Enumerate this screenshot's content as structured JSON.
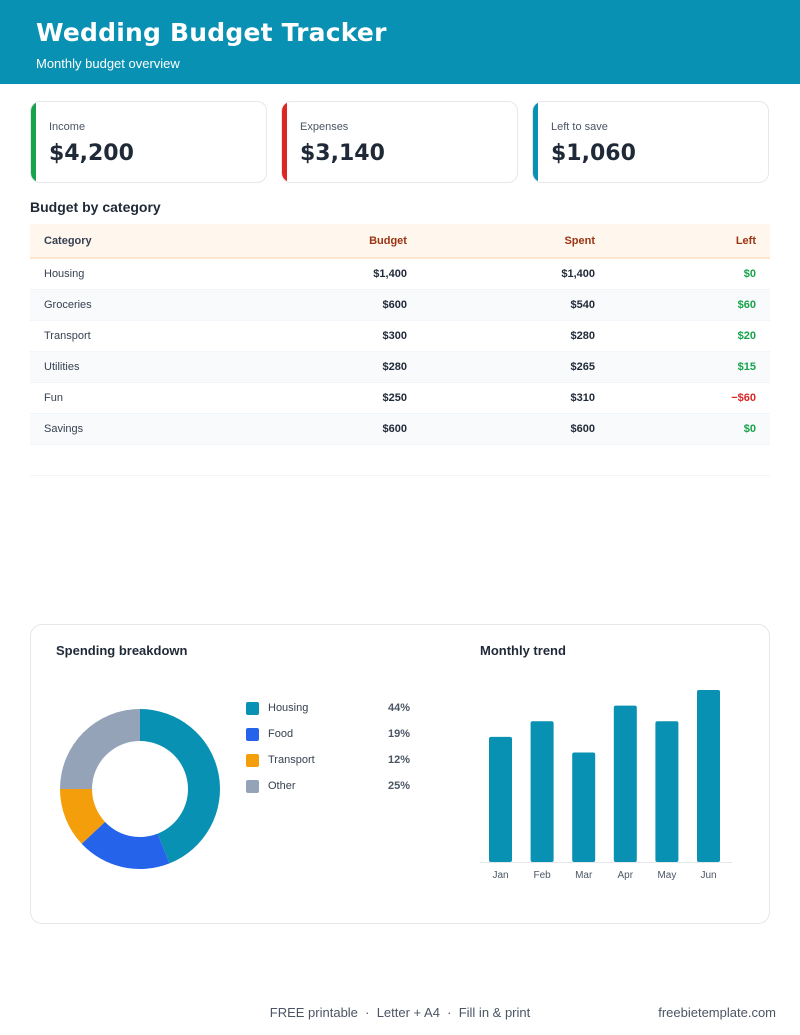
{
  "header": {
    "title": "Wedding Budget Tracker",
    "subtitle": "Monthly budget overview"
  },
  "summary": [
    {
      "label": "Income",
      "value": "$4,200",
      "color": "#16a34a"
    },
    {
      "label": "Expenses",
      "value": "$3,140",
      "color": "#dc2626"
    },
    {
      "label": "Left to save",
      "value": "$1,060",
      "color": "#0891b2"
    }
  ],
  "budget_table": {
    "title": "Budget by category",
    "headers": [
      "Category",
      "Budget",
      "Spent",
      "Left"
    ],
    "rows": [
      {
        "category": "Housing",
        "budget": "$1,400",
        "spent": "$1,400",
        "left": "$0"
      },
      {
        "category": "Groceries",
        "budget": "$600",
        "spent": "$540",
        "left": "$60"
      },
      {
        "category": "Transport",
        "budget": "$300",
        "spent": "$280",
        "left": "$20"
      },
      {
        "category": "Utilities",
        "budget": "$280",
        "spent": "$265",
        "left": "$15"
      },
      {
        "category": "Fun",
        "budget": "$250",
        "spent": "$310",
        "left": "−$60"
      },
      {
        "category": "Savings",
        "budget": "$600",
        "spent": "$600",
        "left": "$0"
      }
    ]
  },
  "spending": {
    "title": "Spending breakdown",
    "items": [
      {
        "label": "Housing",
        "pct": "44%",
        "color": "#0891b2"
      },
      {
        "label": "Food",
        "pct": "19%",
        "color": "#2563eb"
      },
      {
        "label": "Transport",
        "pct": "12%",
        "color": "#f59e0b"
      },
      {
        "label": "Other",
        "pct": "25%",
        "color": "#94a3b8"
      }
    ]
  },
  "trend": {
    "title": "Monthly trend"
  },
  "chart_data": [
    {
      "type": "pie",
      "title": "Spending breakdown",
      "categories": [
        "Housing",
        "Food",
        "Transport",
        "Other"
      ],
      "values": [
        44,
        19,
        12,
        25
      ],
      "colors": [
        "#0891b2",
        "#2563eb",
        "#f59e0b",
        "#94a3b8"
      ],
      "legend": "right"
    },
    {
      "type": "bar",
      "title": "Monthly trend",
      "categories": [
        "Jan",
        "Feb",
        "Mar",
        "Apr",
        "May",
        "Jun"
      ],
      "values": [
        80,
        90,
        70,
        100,
        90,
        110
      ],
      "ylim": [
        0,
        110
      ],
      "color": "#0891b2"
    }
  ],
  "footer": {
    "center": "FREE printable  ·  Letter + A4  ·  Fill in & print",
    "right": "freebietemplate.com"
  }
}
